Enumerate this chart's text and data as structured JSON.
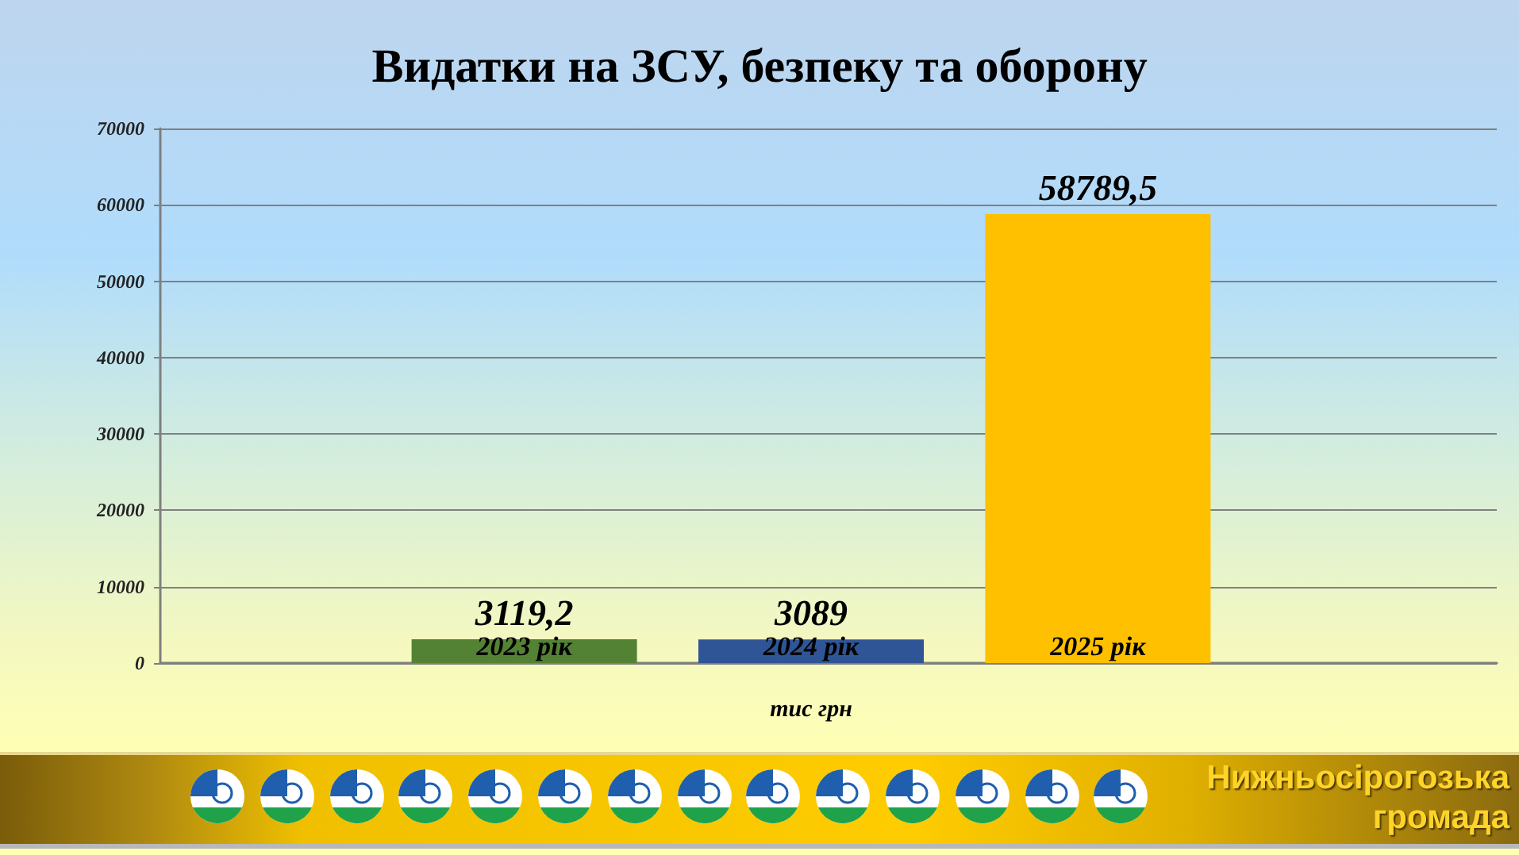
{
  "chart_data": {
    "type": "bar",
    "title": "Видатки на ЗСУ, безпеку та оборону",
    "xlabel": "тис грн",
    "categories": [
      "2023 рік",
      "2024 рік",
      "2025 рік"
    ],
    "values": [
      3119.2,
      3089,
      58789.5
    ],
    "colors": [
      "#548235",
      "#2f5597",
      "#ffc000"
    ],
    "value_labels": [
      "3119,2",
      "3089",
      "58789,5"
    ],
    "ylim": [
      0,
      70000
    ],
    "yticks": [
      0,
      10000,
      20000,
      30000,
      40000,
      50000,
      60000,
      70000
    ],
    "grid": "y",
    "annotations": [
      "Нижньосірогозька громада"
    ]
  }
}
